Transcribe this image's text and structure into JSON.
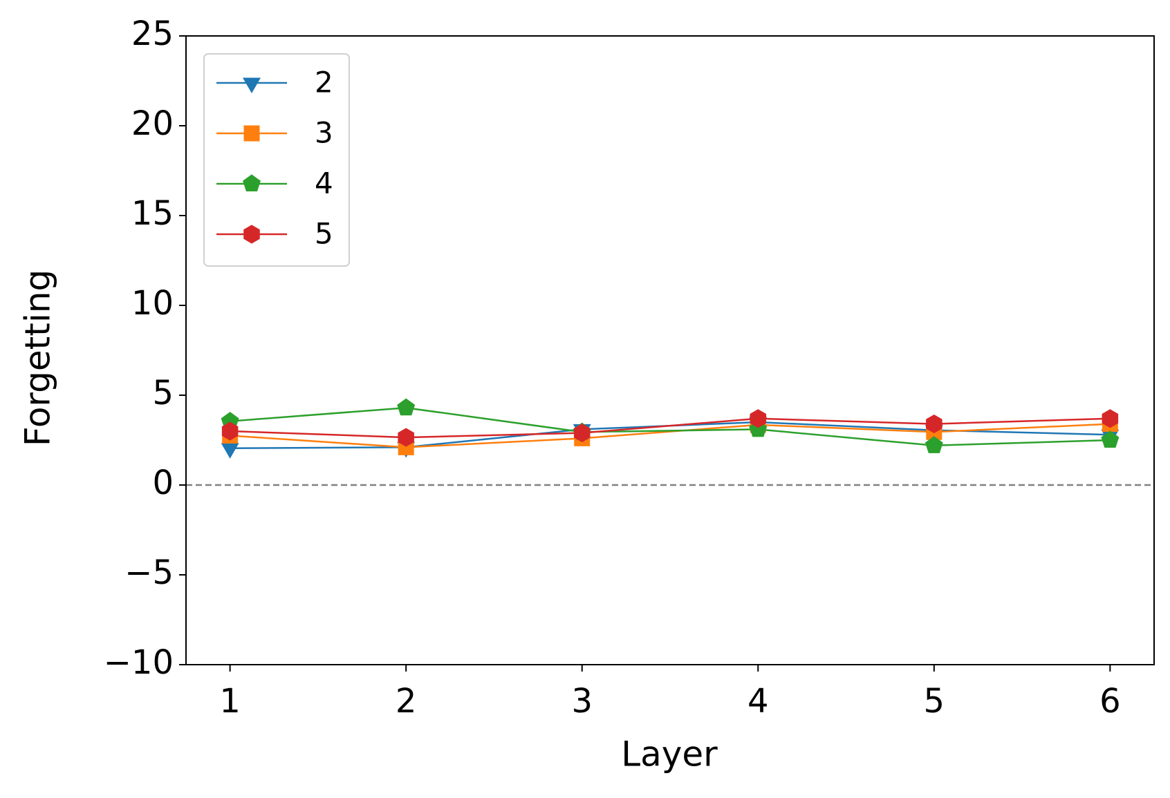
{
  "chart_data": {
    "type": "line",
    "xlabel": "Layer",
    "ylabel": "Forgetting",
    "x": [
      1,
      2,
      3,
      4,
      5,
      6
    ],
    "series": [
      {
        "name": "2",
        "color": "#1f77b4",
        "marker": "triangle-down",
        "values": [
          2.05,
          2.1,
          3.1,
          3.5,
          3.05,
          2.8
        ]
      },
      {
        "name": "3",
        "color": "#ff7f0e",
        "marker": "square",
        "values": [
          2.75,
          2.1,
          2.6,
          3.35,
          2.95,
          3.4
        ]
      },
      {
        "name": "4",
        "color": "#2ca02c",
        "marker": "pentagon",
        "values": [
          3.55,
          4.3,
          2.95,
          3.1,
          2.2,
          2.5
        ]
      },
      {
        "name": "5",
        "color": "#d62728",
        "marker": "hexagon",
        "values": [
          3.0,
          2.65,
          2.9,
          3.7,
          3.4,
          3.7
        ]
      }
    ],
    "xlim": [
      0.75,
      6.25
    ],
    "xticks": [
      1,
      2,
      3,
      4,
      5,
      6
    ],
    "ylim": [
      -10,
      25
    ],
    "yticks": [
      {
        "value": -10,
        "label": "−10"
      },
      {
        "value": -5,
        "label": "−5"
      },
      0,
      5,
      10,
      15,
      20,
      25
    ],
    "reference_line": {
      "y": 0,
      "color": "#808080",
      "dashed": true
    },
    "legend": "upper left",
    "grid": false
  }
}
